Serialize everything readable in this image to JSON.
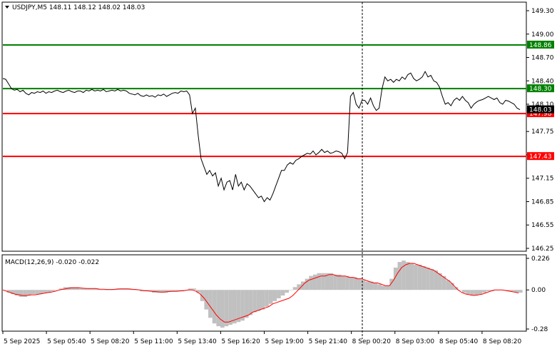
{
  "symbol_header": {
    "dropdown_icon": "triangle-down-icon",
    "text": "USDJPY,M5  148.11 148.12 148.02 148.03"
  },
  "colors": {
    "background": "#ffffff",
    "frame": "#000000",
    "price_line": "#000000",
    "green_level": "#008000",
    "red_level": "#ff0000",
    "macd_histogram": "#c0c0c0",
    "macd_signal": "#ff0000",
    "current_price_tag": "#000000",
    "vertical_marker": "#000000"
  },
  "price_axis": {
    "min": 146.25,
    "max": 149.3,
    "ticks": [
      "149.30",
      "149.00",
      "148.70",
      "148.40",
      "148.10",
      "147.75",
      "147.45",
      "147.15",
      "146.85",
      "146.55",
      "146.25"
    ],
    "tick_values": [
      149.3,
      149.0,
      148.7,
      148.4,
      148.1,
      147.75,
      147.45,
      147.15,
      146.85,
      146.55,
      146.25
    ]
  },
  "levels": [
    {
      "value": 148.86,
      "label": "148.86",
      "color": "green"
    },
    {
      "value": 148.3,
      "label": "148.30",
      "color": "green"
    },
    {
      "value": 147.98,
      "label": "147.98",
      "color": "red"
    },
    {
      "value": 147.43,
      "label": "147.43",
      "color": "red"
    }
  ],
  "current_price": {
    "value": 148.03,
    "label": "148.03"
  },
  "macd": {
    "title": "MACD(12,26,9) -0.020 -0.022",
    "min": -0.28,
    "max": 0.226,
    "ticks": [
      "0.226",
      "0.00",
      "-0.28"
    ],
    "tick_values": [
      0.226,
      0.0,
      -0.28
    ]
  },
  "time_axis": {
    "labels": [
      "5 Sep 2025",
      "5 Sep 05:40",
      "5 Sep 08:20",
      "5 Sep 11:00",
      "5 Sep 13:40",
      "5 Sep 16:20",
      "5 Sep 19:00",
      "5 Sep 21:40",
      "8 Sep 00:20",
      "8 Sep 03:00",
      "8 Sep 05:40",
      "8 Sep 08:20"
    ]
  },
  "session_break": {
    "after_label": "5 Sep 21:40"
  },
  "chart_data": {
    "type": "line",
    "symbol": "USDJPY",
    "timeframe": "M5",
    "price_series": [
      148.43,
      148.42,
      148.36,
      148.3,
      148.28,
      148.29,
      148.26,
      148.28,
      148.24,
      148.22,
      148.25,
      148.24,
      148.26,
      148.25,
      148.27,
      148.24,
      148.26,
      148.25,
      148.27,
      148.28,
      148.26,
      148.25,
      148.27,
      148.28,
      148.26,
      148.25,
      148.27,
      148.27,
      148.25,
      148.28,
      148.27,
      148.29,
      148.27,
      148.28,
      148.27,
      148.29,
      148.26,
      148.27,
      148.28,
      148.27,
      148.29,
      148.27,
      148.28,
      148.27,
      148.24,
      148.23,
      148.22,
      148.24,
      148.21,
      148.2,
      148.22,
      148.2,
      148.21,
      148.19,
      148.22,
      148.21,
      148.23,
      148.2,
      148.22,
      148.24,
      148.25,
      148.24,
      148.27,
      148.26,
      148.27,
      148.22,
      147.98,
      148.05,
      147.7,
      147.4,
      147.3,
      147.2,
      147.25,
      147.18,
      147.22,
      147.05,
      147.15,
      147.0,
      147.1,
      147.12,
      147.0,
      147.2,
      147.05,
      147.1,
      147.0,
      147.08,
      147.05,
      147.0,
      146.95,
      146.9,
      146.92,
      146.85,
      146.9,
      146.87,
      146.95,
      147.05,
      147.15,
      147.25,
      147.25,
      147.32,
      147.35,
      147.33,
      147.38,
      147.4,
      147.43,
      147.45,
      147.47,
      147.46,
      147.5,
      147.45,
      147.48,
      147.52,
      147.48,
      147.5,
      147.47,
      147.48,
      147.5,
      147.49,
      147.47,
      147.4,
      147.48,
      148.2,
      148.25,
      148.1,
      148.05,
      148.15,
      148.15,
      148.1,
      148.18,
      148.08,
      148.02,
      148.05,
      148.3,
      148.45,
      148.4,
      148.42,
      148.38,
      148.42,
      148.4,
      148.45,
      148.42,
      148.48,
      148.5,
      148.43,
      148.4,
      148.42,
      148.45,
      148.52,
      148.45,
      148.47,
      148.4,
      148.38,
      148.32,
      148.2,
      148.1,
      148.12,
      148.08,
      148.15,
      148.18,
      148.15,
      148.2,
      148.15,
      148.12,
      148.05,
      148.1,
      148.13,
      148.15,
      148.16,
      148.18,
      148.2,
      148.18,
      148.16,
      148.18,
      148.12,
      148.1,
      148.15,
      148.14,
      148.12,
      148.1,
      148.05,
      148.03
    ],
    "macd_histogram": [
      0.0,
      -0.02,
      -0.03,
      -0.04,
      -0.05,
      -0.05,
      -0.04,
      -0.03,
      -0.03,
      -0.03,
      -0.02,
      -0.02,
      -0.01,
      0.0,
      0.01,
      0.02,
      0.02,
      0.02,
      0.02,
      0.01,
      0.01,
      0.01,
      0.01,
      0.01,
      0.0,
      0.0,
      0.0,
      0.0,
      0.01,
      0.01,
      0.01,
      0.01,
      0.0,
      0.0,
      -0.01,
      -0.01,
      -0.01,
      -0.02,
      -0.02,
      -0.02,
      -0.02,
      -0.01,
      -0.01,
      -0.01,
      -0.01,
      0.0,
      0.01,
      0.01,
      -0.02,
      -0.08,
      -0.14,
      -0.2,
      -0.24,
      -0.26,
      -0.27,
      -0.26,
      -0.25,
      -0.24,
      -0.23,
      -0.22,
      -0.2,
      -0.18,
      -0.16,
      -0.15,
      -0.14,
      -0.12,
      -0.1,
      -0.08,
      -0.06,
      -0.04,
      -0.02,
      0.0,
      0.02,
      0.04,
      0.06,
      0.08,
      0.1,
      0.11,
      0.12,
      0.12,
      0.12,
      0.12,
      0.11,
      0.11,
      0.1,
      0.1,
      0.09,
      0.09,
      0.08,
      0.07,
      0.06,
      0.06,
      0.05,
      0.04,
      0.03,
      0.03,
      0.08,
      0.16,
      0.2,
      0.21,
      0.2,
      0.19,
      0.18,
      0.18,
      0.17,
      0.16,
      0.15,
      0.14,
      0.12,
      0.1,
      0.07,
      0.05,
      0.02,
      0.0,
      -0.02,
      -0.03,
      -0.04,
      -0.04,
      -0.03,
      -0.02,
      -0.01,
      -0.01,
      0.0,
      0.0,
      0.0,
      -0.01,
      -0.01,
      -0.02,
      -0.02
    ],
    "macd_signal": [
      0.0,
      -0.01,
      -0.02,
      -0.03,
      -0.035,
      -0.04,
      -0.04,
      -0.035,
      -0.035,
      -0.03,
      -0.025,
      -0.02,
      -0.015,
      -0.01,
      0.0,
      0.005,
      0.01,
      0.015,
      0.015,
      0.015,
      0.012,
      0.01,
      0.01,
      0.01,
      0.005,
      0.005,
      0.003,
      0.003,
      0.005,
      0.007,
      0.008,
      0.008,
      0.005,
      0.003,
      0.0,
      -0.005,
      -0.007,
      -0.01,
      -0.012,
      -0.015,
      -0.015,
      -0.012,
      -0.01,
      -0.01,
      -0.008,
      -0.005,
      0.0,
      0.0,
      -0.01,
      -0.03,
      -0.06,
      -0.1,
      -0.14,
      -0.18,
      -0.21,
      -0.23,
      -0.23,
      -0.22,
      -0.21,
      -0.2,
      -0.19,
      -0.18,
      -0.16,
      -0.15,
      -0.14,
      -0.13,
      -0.12,
      -0.1,
      -0.09,
      -0.08,
      -0.07,
      -0.06,
      -0.04,
      -0.01,
      0.02,
      0.05,
      0.07,
      0.08,
      0.09,
      0.1,
      0.1,
      0.11,
      0.11,
      0.1,
      0.1,
      0.1,
      0.09,
      0.09,
      0.08,
      0.08,
      0.07,
      0.06,
      0.05,
      0.05,
      0.04,
      0.03,
      0.03,
      0.07,
      0.12,
      0.16,
      0.18,
      0.19,
      0.19,
      0.18,
      0.17,
      0.16,
      0.15,
      0.14,
      0.12,
      0.1,
      0.08,
      0.06,
      0.03,
      0.0,
      -0.02,
      -0.03,
      -0.035,
      -0.04,
      -0.035,
      -0.03,
      -0.02,
      -0.01,
      0.0,
      0.0,
      0.0,
      -0.005,
      -0.01,
      -0.015,
      -0.022
    ]
  }
}
